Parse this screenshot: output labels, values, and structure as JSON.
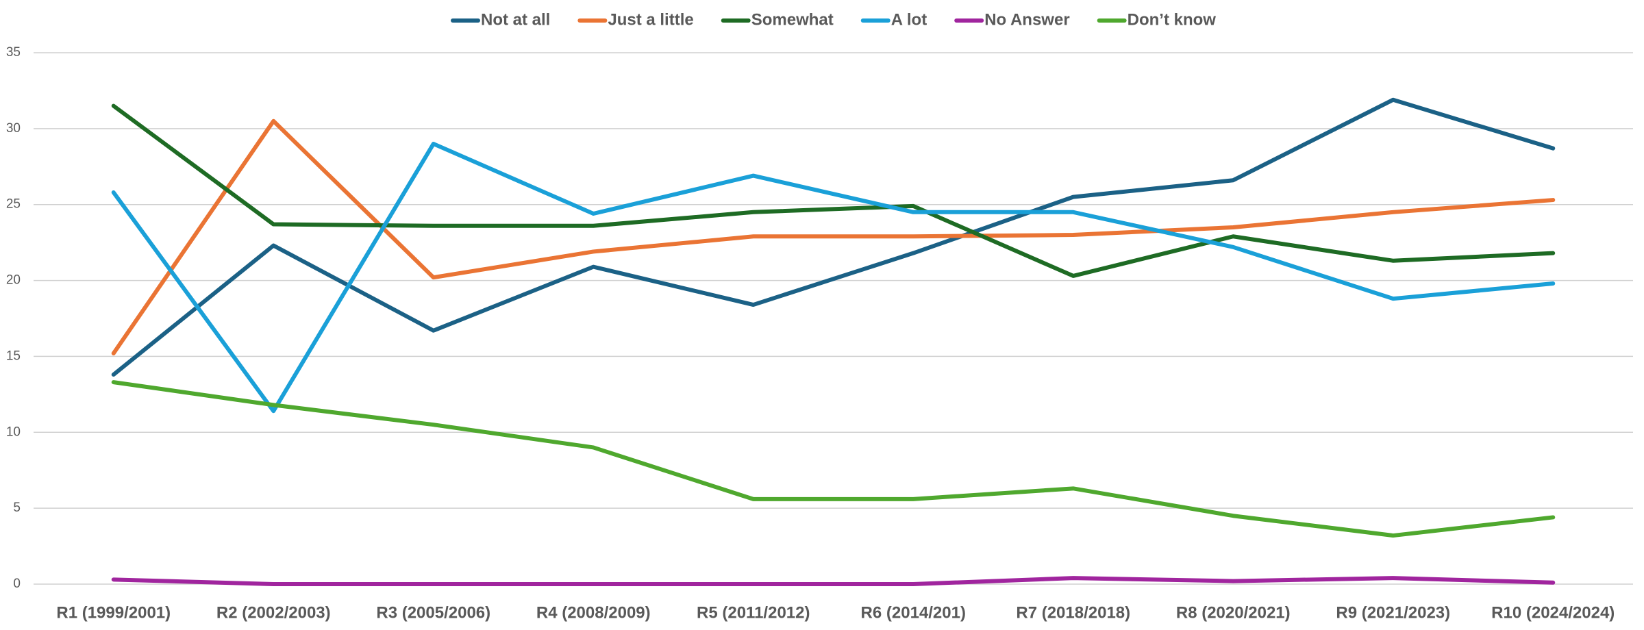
{
  "chart_data": {
    "type": "line",
    "categories": [
      "R1 (1999/2001)",
      "R2 (2002/2003)",
      "R3 (2005/2006)",
      "R4 (2008/2009)",
      "R5 (2011/2012)",
      "R6 (2014/201)",
      "R7 (2018/2018)",
      "R8 (2020/2021)",
      "R9 (2021/2023)",
      "R10 (2024/2024)"
    ],
    "series": [
      {
        "name": "Not at all",
        "color": "#1b6186",
        "values": [
          13.8,
          22.3,
          16.7,
          20.9,
          18.4,
          21.8,
          25.5,
          26.6,
          31.9,
          28.7
        ]
      },
      {
        "name": "Just a little",
        "color": "#ea7434",
        "values": [
          15.2,
          30.5,
          20.2,
          21.9,
          22.9,
          22.9,
          23.0,
          23.5,
          24.5,
          25.3
        ]
      },
      {
        "name": "Somewhat",
        "color": "#1e6b24",
        "values": [
          31.5,
          23.7,
          23.6,
          23.6,
          24.5,
          24.9,
          20.3,
          22.9,
          21.3,
          21.8
        ]
      },
      {
        "name": "A lot",
        "color": "#1aa0d8",
        "values": [
          25.8,
          11.4,
          29.0,
          24.4,
          26.9,
          24.5,
          24.5,
          22.2,
          18.8,
          19.8
        ]
      },
      {
        "name": "No Answer",
        "color": "#a0259e",
        "values": [
          0.3,
          0,
          0,
          0,
          0,
          0,
          0.4,
          0.2,
          0.4,
          0.1
        ]
      },
      {
        "name": "Don’t know",
        "color": "#4fa82e",
        "values": [
          13.3,
          11.8,
          10.5,
          9.0,
          5.6,
          5.6,
          6.3,
          4.5,
          3.2,
          4.4
        ]
      }
    ],
    "ylim": [
      0,
      35
    ],
    "yticks": [
      0,
      5,
      10,
      15,
      20,
      25,
      30,
      35
    ],
    "grid": true,
    "legend": "top"
  }
}
